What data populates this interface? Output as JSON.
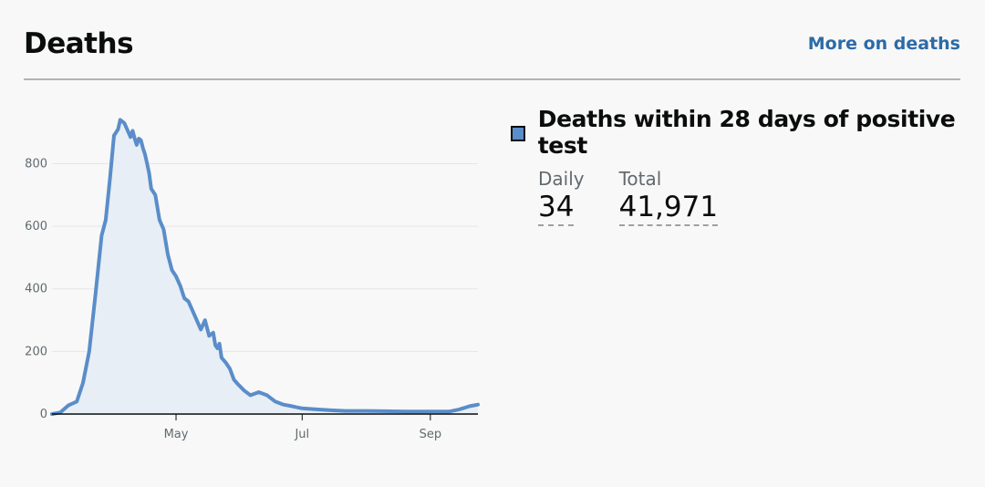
{
  "header": {
    "title": "Deaths",
    "more_link": "More on deaths"
  },
  "metric": {
    "heading": "Deaths within 28 days of positive test",
    "daily_label": "Daily",
    "daily_value": "34",
    "total_label": "Total",
    "total_value": "41,971"
  },
  "colors": {
    "line": "#5a8dc9",
    "fill": "#e7eef5",
    "link": "#2d6aa7",
    "grid": "#e6e6e6"
  },
  "chart_data": {
    "type": "area",
    "title": "",
    "xlabel": "",
    "ylabel": "",
    "ylim": [
      0,
      950
    ],
    "yticks": [
      0,
      200,
      400,
      600,
      800
    ],
    "xtick_labels": [
      "May",
      "Jul",
      "Sep"
    ],
    "xtick_dates": [
      "2020-05-01",
      "2020-07-01",
      "2020-09-01"
    ],
    "xlim": [
      "2020-03-02",
      "2020-09-24"
    ],
    "grid": true,
    "series": [
      {
        "x": [
          "2020-03-02",
          "2020-03-06",
          "2020-03-10",
          "2020-03-14",
          "2020-03-17",
          "2020-03-20",
          "2020-03-23",
          "2020-03-26",
          "2020-03-28",
          "2020-03-30",
          "2020-04-01",
          "2020-04-03",
          "2020-04-04",
          "2020-04-06",
          "2020-04-08",
          "2020-04-09",
          "2020-04-10",
          "2020-04-11",
          "2020-04-12",
          "2020-04-13",
          "2020-04-14",
          "2020-04-15",
          "2020-04-16",
          "2020-04-17",
          "2020-04-18",
          "2020-04-19",
          "2020-04-21",
          "2020-04-23",
          "2020-04-25",
          "2020-04-27",
          "2020-04-29",
          "2020-05-01",
          "2020-05-03",
          "2020-05-05",
          "2020-05-07",
          "2020-05-09",
          "2020-05-11",
          "2020-05-13",
          "2020-05-15",
          "2020-05-17",
          "2020-05-19",
          "2020-05-20",
          "2020-05-21",
          "2020-05-22",
          "2020-05-23",
          "2020-05-25",
          "2020-05-27",
          "2020-05-29",
          "2020-05-31",
          "2020-06-03",
          "2020-06-06",
          "2020-06-10",
          "2020-06-14",
          "2020-06-18",
          "2020-06-22",
          "2020-06-26",
          "2020-07-01",
          "2020-07-08",
          "2020-07-15",
          "2020-07-22",
          "2020-08-01",
          "2020-08-10",
          "2020-08-20",
          "2020-09-01",
          "2020-09-10",
          "2020-09-15",
          "2020-09-20",
          "2020-09-24"
        ],
        "values": [
          0,
          5,
          28,
          40,
          100,
          200,
          380,
          570,
          620,
          750,
          890,
          910,
          940,
          930,
          900,
          885,
          905,
          880,
          860,
          880,
          875,
          850,
          830,
          800,
          770,
          720,
          700,
          620,
          590,
          510,
          460,
          440,
          410,
          370,
          360,
          330,
          300,
          270,
          300,
          250,
          260,
          220,
          210,
          225,
          180,
          165,
          145,
          110,
          95,
          75,
          60,
          70,
          60,
          40,
          30,
          25,
          18,
          15,
          12,
          10,
          10,
          9,
          8,
          8,
          8,
          15,
          25,
          30
        ]
      }
    ]
  }
}
